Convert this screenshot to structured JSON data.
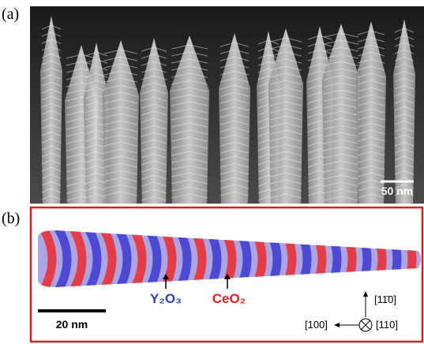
{
  "panels": [
    {
      "label": "(a)",
      "scale_bar": "50 nm"
    },
    {
      "label": "(b)",
      "annotations": [
        "Y₂O₃",
        "CeO₂"
      ],
      "scale_bar": "20 nm",
      "directions": [
        "[11̄0]",
        "[100]",
        "[110]"
      ]
    }
  ]
}
